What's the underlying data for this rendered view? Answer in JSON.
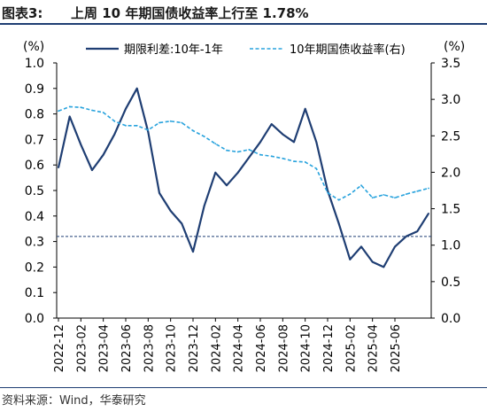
{
  "title": {
    "prefix": "图表3:",
    "text": "上周 10 年期国债收益率上行至 1.78%"
  },
  "source": "资料来源：Wind，华泰研究",
  "colors": {
    "spread": "#1f3e73",
    "yield": "#29a3dd",
    "rule": "#1f3e73",
    "avg": "#1f3e73"
  },
  "chart_data": {
    "type": "line",
    "ylabel_left": "(%)",
    "ylabel_right": "(%)",
    "ylim_left": [
      0.0,
      1.0
    ],
    "ylim_right": [
      0.0,
      3.5
    ],
    "yticks_left": [
      "0.0",
      "0.1",
      "0.2",
      "0.3",
      "0.4",
      "0.5",
      "0.6",
      "0.7",
      "0.8",
      "0.9",
      "1.0"
    ],
    "yticks_right": [
      "0.0",
      "0.5",
      "1.0",
      "1.5",
      "2.0",
      "2.5",
      "3.0",
      "3.5"
    ],
    "x_categories": [
      "2022-12",
      "2023-02",
      "2023-04",
      "2023-06",
      "2023-08",
      "2023-10",
      "2023-12",
      "2024-02",
      "2024-04",
      "2024-06",
      "2024-08",
      "2024-10",
      "2024-12",
      "2025-02",
      "2025-04",
      "2025-06"
    ],
    "grid": false,
    "legend_position": "top",
    "reference_line": {
      "axis": "left",
      "value": 0.32,
      "style": "dashed"
    },
    "series": [
      {
        "name": "期限利差:10年-1年",
        "axis": "left",
        "style": "solid",
        "points": [
          [
            "2022-12",
            0.59
          ],
          [
            "2023-01",
            0.79
          ],
          [
            "2023-02",
            0.68
          ],
          [
            "2023-03",
            0.58
          ],
          [
            "2023-04",
            0.64
          ],
          [
            "2023-05",
            0.72
          ],
          [
            "2023-06",
            0.82
          ],
          [
            "2023-07",
            0.9
          ],
          [
            "2023-08",
            0.73
          ],
          [
            "2023-09",
            0.49
          ],
          [
            "2023-10",
            0.42
          ],
          [
            "2023-11",
            0.37
          ],
          [
            "2023-12",
            0.26
          ],
          [
            "2024-01",
            0.44
          ],
          [
            "2024-02",
            0.57
          ],
          [
            "2024-03",
            0.52
          ],
          [
            "2024-04",
            0.57
          ],
          [
            "2024-05",
            0.63
          ],
          [
            "2024-06",
            0.69
          ],
          [
            "2024-07",
            0.76
          ],
          [
            "2024-08",
            0.72
          ],
          [
            "2024-09",
            0.69
          ],
          [
            "2024-10",
            0.82
          ],
          [
            "2024-11",
            0.69
          ],
          [
            "2024-12",
            0.5
          ],
          [
            "2025-01",
            0.37
          ],
          [
            "2025-02",
            0.23
          ],
          [
            "2025-03",
            0.28
          ],
          [
            "2025-04",
            0.22
          ],
          [
            "2025-05",
            0.2
          ],
          [
            "2025-06",
            0.28
          ],
          [
            "2025-07",
            0.32
          ],
          [
            "2025-08",
            0.34
          ],
          [
            "2025-09",
            0.41
          ]
        ]
      },
      {
        "name": "10年期国债收益率(右)",
        "axis": "right",
        "style": "dashed",
        "points": [
          [
            "2022-12",
            2.84
          ],
          [
            "2023-01",
            2.9
          ],
          [
            "2023-02",
            2.89
          ],
          [
            "2023-03",
            2.85
          ],
          [
            "2023-04",
            2.82
          ],
          [
            "2023-05",
            2.7
          ],
          [
            "2023-06",
            2.64
          ],
          [
            "2023-07",
            2.64
          ],
          [
            "2023-08",
            2.58
          ],
          [
            "2023-09",
            2.68
          ],
          [
            "2023-10",
            2.7
          ],
          [
            "2023-11",
            2.68
          ],
          [
            "2023-12",
            2.57
          ],
          [
            "2024-01",
            2.49
          ],
          [
            "2024-02",
            2.39
          ],
          [
            "2024-03",
            2.3
          ],
          [
            "2024-04",
            2.28
          ],
          [
            "2024-05",
            2.31
          ],
          [
            "2024-06",
            2.24
          ],
          [
            "2024-07",
            2.22
          ],
          [
            "2024-08",
            2.19
          ],
          [
            "2024-09",
            2.15
          ],
          [
            "2024-10",
            2.14
          ],
          [
            "2024-11",
            2.05
          ],
          [
            "2024-12",
            1.72
          ],
          [
            "2025-01",
            1.62
          ],
          [
            "2025-02",
            1.7
          ],
          [
            "2025-03",
            1.82
          ],
          [
            "2025-04",
            1.65
          ],
          [
            "2025-05",
            1.69
          ],
          [
            "2025-06",
            1.65
          ],
          [
            "2025-07",
            1.7
          ],
          [
            "2025-08",
            1.74
          ],
          [
            "2025-09",
            1.78
          ]
        ]
      }
    ]
  }
}
